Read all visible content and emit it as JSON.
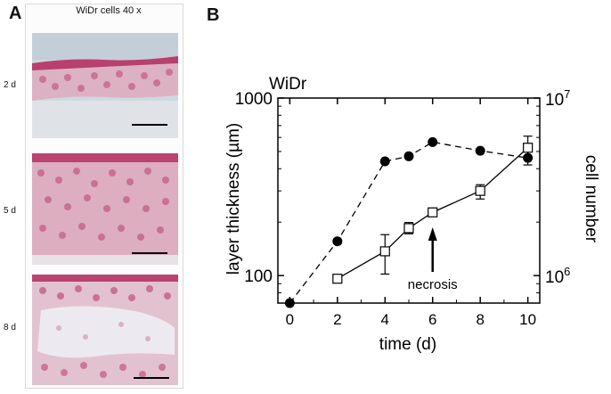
{
  "panel_a": {
    "letter": "A",
    "title": "WiDr cells 40 x",
    "days": [
      "2 d",
      "5 d",
      "8 d"
    ]
  },
  "panel_b": {
    "letter": "B"
  },
  "colors": {
    "stain_pink": "#c9517f",
    "cell_light": "#e8b6c6",
    "background_tissue": "#d9cfd6"
  },
  "chart_data": {
    "type": "line",
    "title": "WiDr",
    "xlabel": "time (d)",
    "ylabel_left": "layer thickness (µm)",
    "ylabel_right": "cell number",
    "xlim": [
      -0.5,
      10.5
    ],
    "x_ticks": [
      0,
      2,
      4,
      6,
      8,
      10
    ],
    "y_left_scale": "log",
    "y_left_lim": [
      70,
      1000
    ],
    "y_left_ticks": [
      "100",
      "1000"
    ],
    "y_right_scale": "log",
    "y_right_lim": [
      700000,
      10000000
    ],
    "y_right_ticks": [
      "10^6",
      "10^7"
    ],
    "series": [
      {
        "marker": "filled-circle",
        "line": "dashed",
        "axis": "left",
        "x": [
          0,
          2,
          4,
          5,
          6,
          8,
          10
        ],
        "y": [
          70,
          156,
          440,
          470,
          565,
          505,
          460
        ],
        "err_low": [
          null,
          null,
          null,
          null,
          null,
          null,
          420
        ],
        "err_high": [
          null,
          null,
          null,
          null,
          null,
          null,
          500
        ]
      },
      {
        "marker": "open-square",
        "line": "solid",
        "axis": "right",
        "x": [
          2,
          4,
          5,
          6,
          8,
          10
        ],
        "y": [
          960000,
          1370000,
          1850000,
          2270000,
          3000000,
          5250000
        ],
        "err_low": [
          null,
          1020000,
          1720000,
          2150000,
          2700000,
          4700000
        ],
        "err_high": [
          null,
          1700000,
          1990000,
          2400000,
          3250000,
          6100000
        ]
      }
    ],
    "annotations": [
      {
        "text": "necrosis",
        "x": 6,
        "arrow": "up"
      }
    ]
  }
}
